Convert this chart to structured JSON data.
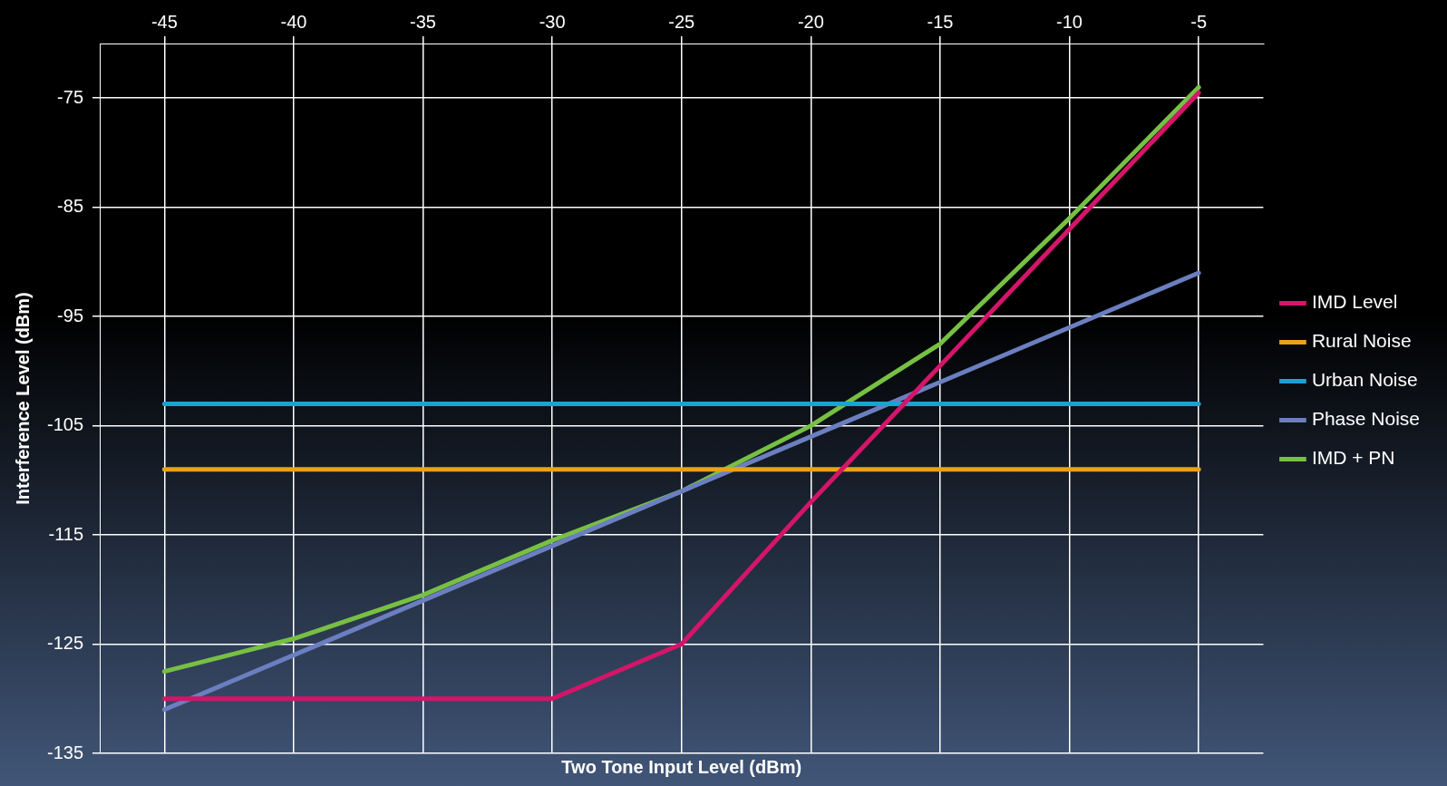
{
  "chart_data": {
    "type": "line",
    "xlabel": "Two Tone Input Level (dBm)",
    "ylabel": "Interference Level (dBm)",
    "categories": [
      "-45",
      "-40",
      "-35",
      "-30",
      "-25",
      "-20",
      "-15",
      "-10",
      "-5"
    ],
    "series": [
      {
        "name": "IMD Level",
        "color": "#d4156a",
        "values": [
          -130,
          -130,
          -130,
          -130,
          -125,
          -112,
          -99.5,
          -87,
          -74.5
        ]
      },
      {
        "name": "Rural Noise",
        "color": "#e8a317",
        "values": [
          -109,
          -109,
          -109,
          -109,
          -109,
          -109,
          -109,
          -109,
          -109
        ]
      },
      {
        "name": "Urban Noise",
        "color": "#1aa3cf",
        "values": [
          -103,
          -103,
          -103,
          -103,
          -103,
          -103,
          -103,
          -103,
          -103
        ]
      },
      {
        "name": "Phase Noise",
        "color": "#6b7fc0",
        "values": [
          -131,
          -126,
          -121,
          -116,
          -111,
          -106,
          -101,
          -96,
          -91
        ]
      },
      {
        "name": "IMD + PN",
        "color": "#77c043",
        "values": [
          -127.5,
          -124.5,
          -120.5,
          -115.5,
          -111,
          -105,
          -97.5,
          -86,
          -74
        ]
      }
    ],
    "ylim": [
      -135,
      -70
    ],
    "yticks": [
      -135,
      -125,
      -115,
      -105,
      -95,
      -85,
      -75
    ],
    "grid": true,
    "legend": "right",
    "marker": "none",
    "line_style": "solid"
  }
}
